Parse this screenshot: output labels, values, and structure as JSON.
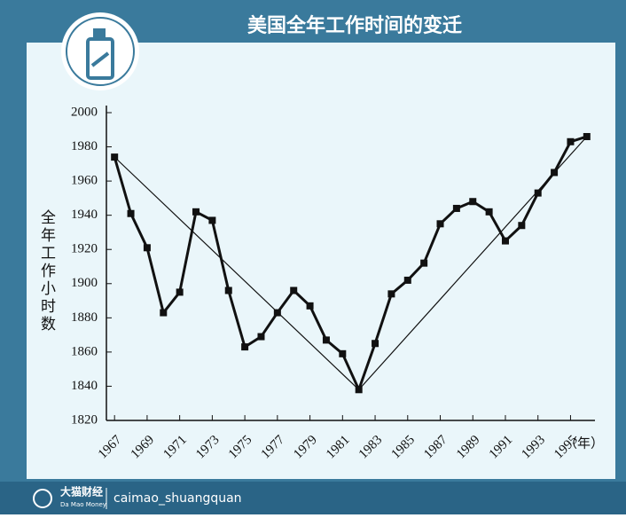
{
  "chart_data": {
    "type": "line",
    "title": "美国全年工作时间的变迁",
    "y_label": "全年工作小时数",
    "x_unit": "（年）",
    "x": [
      1967,
      1968,
      1969,
      1970,
      1971,
      1972,
      1973,
      1974,
      1975,
      1976,
      1977,
      1978,
      1979,
      1980,
      1981,
      1982,
      1983,
      1984,
      1985,
      1986,
      1987,
      1988,
      1989,
      1990,
      1991,
      1992,
      1993,
      1994,
      1995,
      1996
    ],
    "series": [
      {
        "color": "#111111",
        "values": [
          1974,
          1941,
          1921,
          1883,
          1895,
          1942,
          1937,
          1896,
          1863,
          1869,
          1883,
          1896,
          1887,
          1867,
          1859,
          1838,
          1865,
          1894,
          1902,
          1912,
          1935,
          1944,
          1948,
          1942,
          1925,
          1934,
          1953,
          1965,
          1983,
          1986
        ]
      }
    ],
    "trend": {
      "color": "#111111",
      "x": [
        1967,
        1982,
        1996
      ],
      "values": [
        1974,
        1838,
        1986
      ]
    },
    "xlim": [
      1966.5,
      1996.5
    ],
    "xticks": [
      1967,
      1969,
      1971,
      1973,
      1975,
      1977,
      1979,
      1981,
      1983,
      1985,
      1987,
      1989,
      1991,
      1993,
      1995
    ],
    "ylim": [
      1820,
      2000
    ],
    "yticks": [
      1820,
      1840,
      1860,
      1880,
      1900,
      1920,
      1940,
      1960,
      1980,
      2000
    ]
  },
  "footer": {
    "brand": "大猫财经",
    "brand_en": "Da Mao Money",
    "handle": "caimao_shuangquan"
  }
}
